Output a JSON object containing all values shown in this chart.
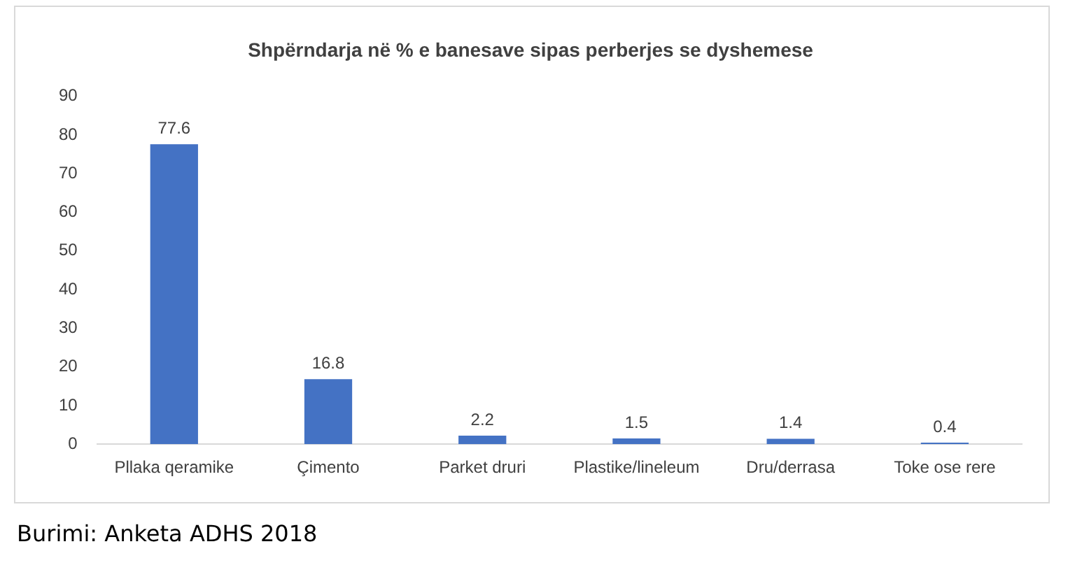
{
  "chart_data": {
    "type": "bar",
    "title": "Shpërndarja në % e banesave sipas perberjes se dyshemese",
    "categories": [
      "Pllaka qeramike",
      "Çimento",
      "Parket druri",
      "Plastike/lineleum",
      "Dru/derrasa",
      "Toke ose rere"
    ],
    "values": [
      77.6,
      16.8,
      2.2,
      1.5,
      1.4,
      0.4
    ],
    "color": "#4472c4",
    "ylim": [
      0,
      90
    ],
    "yticks": [
      0,
      10,
      20,
      30,
      40,
      50,
      60,
      70,
      80,
      90
    ],
    "grid": false,
    "legend": false,
    "data_labels": true,
    "annotations": [
      "Burimi: Anketa ADHS 2018"
    ]
  }
}
